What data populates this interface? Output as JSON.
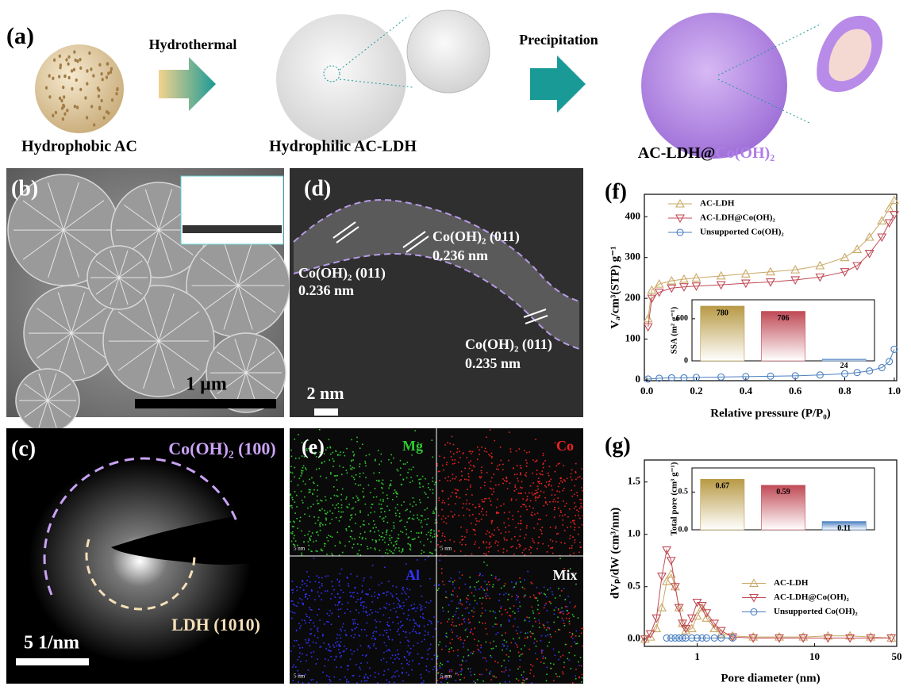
{
  "panels": {
    "a": {
      "label": "(a)",
      "arrow1": "Hydrothermal",
      "arrow2": "Precipitation",
      "step1": "Hydrophobic AC",
      "step2": "Hydrophilic AC-LDH",
      "step3_prefix": "AC-LDH@",
      "step3_suffix": "Co(OH)₂"
    },
    "b": {
      "label": "(b)",
      "scale": "1 µm"
    },
    "c": {
      "label": "(c)",
      "ring1": "Co(OH)₂ (100)",
      "ring2": "LDH (1010)",
      "scale": "5 1/nm"
    },
    "d": {
      "label": "(d)",
      "annotations": [
        {
          "plane": "Co(OH)₂ (011)",
          "spacing": "0.236 nm"
        },
        {
          "plane": "Co(OH)₂ (011)",
          "spacing": "0.236 nm"
        },
        {
          "plane": "Co(OH)₂ (011)",
          "spacing": "0.235 nm"
        }
      ],
      "scale": "2 nm"
    },
    "e": {
      "label": "(e)",
      "maps": [
        "Mg",
        "Co",
        "Al",
        "Mix"
      ],
      "scale": "5 nm"
    }
  },
  "chart_data": [
    {
      "label": "(f)",
      "type": "line",
      "xlabel": "Relative pressure (P/P₀)",
      "ylabel": "Vₐ/cm³(STP) g⁻¹",
      "xlim": [
        -0.01,
        1.01
      ],
      "ylim": [
        -2,
        455
      ],
      "xticks": [
        {
          "value": 0,
          "label": "0.0"
        },
        0.2,
        0.4,
        0.6,
        0.8,
        {
          "value": 1,
          "label": "1.0"
        }
      ],
      "yticks": [
        0,
        100,
        200,
        300,
        400
      ],
      "legend": "upper left",
      "series": [
        {
          "name": "AC-LDH",
          "color": "#c9a865",
          "marker": "triangle-up",
          "x": [
            0.005,
            0.02,
            0.05,
            0.1,
            0.15,
            0.2,
            0.3,
            0.4,
            0.5,
            0.6,
            0.7,
            0.8,
            0.85,
            0.9,
            0.95,
            0.98,
            1.0
          ],
          "values": [
            150,
            220,
            235,
            243,
            247,
            250,
            255,
            260,
            265,
            270,
            280,
            300,
            320,
            350,
            390,
            420,
            440
          ]
        },
        {
          "name": "AC-LDH@Co(OH)₂",
          "color": "#c04a55",
          "marker": "triangle-down",
          "x": [
            0.005,
            0.02,
            0.05,
            0.1,
            0.15,
            0.2,
            0.3,
            0.4,
            0.5,
            0.6,
            0.7,
            0.8,
            0.85,
            0.9,
            0.95,
            0.98,
            1.0
          ],
          "values": [
            130,
            200,
            215,
            225,
            228,
            230,
            233,
            237,
            240,
            245,
            252,
            265,
            280,
            310,
            350,
            385,
            405
          ]
        },
        {
          "name": "Unsupported Co(OH)₂",
          "color": "#4a7fc0",
          "marker": "circle",
          "x": [
            0.005,
            0.05,
            0.1,
            0.15,
            0.2,
            0.3,
            0.4,
            0.5,
            0.6,
            0.7,
            0.8,
            0.85,
            0.9,
            0.95,
            0.98,
            1.0
          ],
          "values": [
            2,
            4,
            5,
            5,
            6,
            7,
            8,
            9,
            10,
            12,
            15,
            18,
            22,
            30,
            45,
            75
          ]
        }
      ]
    },
    {
      "type": "bar",
      "ylabel": "SSA (m² g⁻¹)",
      "categories": [
        null,
        null,
        null
      ],
      "values": [
        780,
        706,
        24
      ],
      "colors": [
        "#b89a45",
        "#c04a55",
        "#4a7fc0"
      ],
      "ylim": [
        0,
        870
      ],
      "yticks": [
        0,
        600
      ]
    },
    {
      "label": "(g)",
      "type": "line",
      "xlabel": "Pore diameter (nm)",
      "ylabel": "dVₚ/dW (cm³/nm)",
      "xlog": true,
      "xlim": [
        0.355,
        50
      ],
      "ylim": [
        -0.07,
        1.71
      ],
      "xticks": [
        1,
        10,
        50
      ],
      "yticks": [
        {
          "value": 0,
          "label": "0.0"
        },
        0.5,
        {
          "value": 1,
          "label": "1.0"
        },
        1.5
      ],
      "legend": "center right",
      "series": [
        {
          "name": "AC-LDH",
          "color": "#c9a865",
          "marker": "triangle-up",
          "x": [
            0.36,
            0.4,
            0.45,
            0.5,
            0.55,
            0.6,
            0.65,
            0.7,
            0.75,
            0.8,
            0.9,
            1.0,
            1.1,
            1.2,
            1.4,
            1.6,
            2,
            3,
            5,
            8,
            13,
            20,
            30,
            45
          ],
          "values": [
            0,
            0.02,
            0.1,
            0.3,
            0.55,
            0.62,
            0.5,
            0.3,
            0.15,
            0.08,
            0.1,
            0.22,
            0.3,
            0.2,
            0.1,
            0.05,
            0.03,
            0.02,
            0.02,
            0.02,
            0.03,
            0.03,
            0.02,
            0.01
          ]
        },
        {
          "name": "AC-LDH@Co(OH)₂",
          "color": "#c04a55",
          "marker": "triangle-down",
          "x": [
            0.36,
            0.4,
            0.45,
            0.5,
            0.55,
            0.6,
            0.65,
            0.7,
            0.75,
            0.8,
            0.9,
            1.0,
            1.1,
            1.2,
            1.4,
            1.6,
            2,
            3,
            5,
            8,
            13,
            20,
            30,
            45
          ],
          "values": [
            0,
            0.05,
            0.2,
            0.6,
            0.85,
            0.75,
            0.5,
            0.3,
            0.15,
            0.1,
            0.2,
            0.35,
            0.32,
            0.25,
            0.15,
            0.08,
            0.02,
            0.01,
            0.01,
            0.01,
            0.01,
            0.01,
            0.01,
            0.01
          ]
        },
        {
          "name": "Unsupported Co(OH)₂",
          "color": "#4a7fc0",
          "marker": "circle",
          "x": [
            0.55,
            0.6,
            0.65,
            0.7,
            0.75,
            0.8,
            0.9,
            1.0,
            1.1,
            1.2,
            1.4,
            1.6,
            2
          ],
          "values": [
            0.01,
            0.01,
            0.01,
            0.01,
            0.01,
            0.01,
            0.01,
            0.01,
            0.01,
            0.01,
            0.01,
            0.01,
            0.01
          ]
        }
      ]
    },
    {
      "type": "bar",
      "ylabel": "Total pore (cm³ g⁻¹)",
      "categories": [
        null,
        null,
        null
      ],
      "values": [
        0.67,
        0.59,
        0.11
      ],
      "colors": [
        "#b89a45",
        "#c04a55",
        "#4a7fc0"
      ],
      "ylim": [
        0,
        0.82
      ],
      "yticks": [
        {
          "value": 0,
          "label": "0.0"
        },
        0.5
      ]
    }
  ]
}
